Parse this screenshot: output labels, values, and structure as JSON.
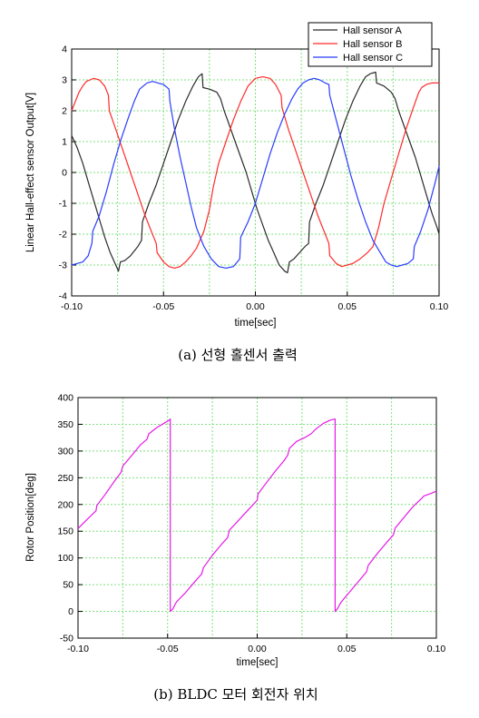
{
  "chart_data": [
    {
      "type": "line",
      "xlabel": "time[sec]",
      "ylabel": "Linear Hall-effect sensor Output[V]",
      "xlim": [
        -0.1,
        0.1
      ],
      "ylim": [
        -4,
        4
      ],
      "xticks": [
        "-0.10",
        "-0.05",
        "0.00",
        "0.05",
        "0.10"
      ],
      "yticks": [
        "-4",
        "-3",
        "-2",
        "-1",
        "0",
        "1",
        "2",
        "3",
        "4"
      ],
      "grid": true,
      "legend_position": "top-right",
      "caption": "(a) 선형 홀센서 출력",
      "series": [
        {
          "name": "Hall sensor A",
          "color": "#2b2b2b",
          "x": [
            -0.1,
            -0.097,
            -0.094,
            -0.091,
            -0.088,
            -0.085,
            -0.082,
            -0.079,
            -0.076,
            -0.0745,
            -0.0735,
            -0.071,
            -0.068,
            -0.064,
            -0.062,
            -0.0615,
            -0.058,
            -0.054,
            -0.05,
            -0.046,
            -0.042,
            -0.038,
            -0.034,
            -0.031,
            -0.029,
            -0.0285,
            -0.025,
            -0.021,
            -0.019,
            -0.017,
            -0.014,
            -0.011,
            -0.008,
            -0.005,
            -0.002,
            0.001,
            0.004,
            0.007,
            0.01,
            0.013,
            0.016,
            0.0175,
            0.0185,
            0.021,
            0.024,
            0.027,
            0.029,
            0.0295,
            0.033,
            0.037,
            0.041,
            0.045,
            0.049,
            0.053,
            0.057,
            0.06,
            0.0625,
            0.0655,
            0.066,
            0.07,
            0.074,
            0.076,
            0.078,
            0.081,
            0.084,
            0.087,
            0.09,
            0.093,
            0.096,
            0.099,
            0.1
          ],
          "y": [
            1.2,
            0.8,
            0.3,
            -0.3,
            -0.9,
            -1.5,
            -2.1,
            -2.6,
            -3.0,
            -3.2,
            -2.9,
            -2.85,
            -2.7,
            -2.4,
            -2.2,
            -1.6,
            -1.0,
            -0.4,
            0.3,
            1.0,
            1.7,
            2.3,
            2.8,
            3.1,
            3.2,
            2.75,
            2.7,
            2.6,
            2.4,
            2.0,
            1.5,
            1.0,
            0.5,
            0.0,
            -0.6,
            -1.2,
            -1.7,
            -2.2,
            -2.6,
            -3.0,
            -3.2,
            -3.25,
            -2.9,
            -2.8,
            -2.6,
            -2.4,
            -2.3,
            -1.6,
            -1.0,
            -0.4,
            0.3,
            1.0,
            1.7,
            2.3,
            2.8,
            3.1,
            3.2,
            3.25,
            2.9,
            2.8,
            2.6,
            2.4,
            2.0,
            1.5,
            1.0,
            0.5,
            -0.1,
            -0.7,
            -1.3,
            -1.8,
            -2.0
          ]
        },
        {
          "name": "Hall sensor B",
          "color": "#ff2a2a",
          "x": [
            -0.1,
            -0.098,
            -0.096,
            -0.094,
            -0.092,
            -0.09,
            -0.088,
            -0.085,
            -0.082,
            -0.08,
            -0.0795,
            -0.076,
            -0.072,
            -0.068,
            -0.064,
            -0.06,
            -0.056,
            -0.054,
            -0.0535,
            -0.05,
            -0.047,
            -0.044,
            -0.041,
            -0.038,
            -0.035,
            -0.032,
            -0.028,
            -0.025,
            -0.023,
            -0.02,
            -0.016,
            -0.012,
            -0.008,
            -0.004,
            0.0,
            0.004,
            0.008,
            0.011,
            0.014,
            0.0145,
            0.018,
            0.022,
            0.026,
            0.03,
            0.034,
            0.038,
            0.04,
            0.0405,
            0.044,
            0.047,
            0.05,
            0.053,
            0.057,
            0.061,
            0.064,
            0.067,
            0.07,
            0.074,
            0.078,
            0.082,
            0.086,
            0.089,
            0.0905,
            0.093,
            0.096,
            0.1
          ],
          "y": [
            2.0,
            2.3,
            2.6,
            2.8,
            2.95,
            3.0,
            3.05,
            3.0,
            2.8,
            2.5,
            2.0,
            1.4,
            0.7,
            0.0,
            -0.7,
            -1.4,
            -2.0,
            -2.3,
            -2.6,
            -2.9,
            -3.05,
            -3.1,
            -3.05,
            -2.9,
            -2.7,
            -2.45,
            -1.9,
            -1.2,
            -0.5,
            0.3,
            1.0,
            1.7,
            2.3,
            2.8,
            3.05,
            3.1,
            3.05,
            2.85,
            2.5,
            2.1,
            1.4,
            0.7,
            0.0,
            -0.7,
            -1.4,
            -2.0,
            -2.3,
            -2.7,
            -2.95,
            -3.05,
            -3.0,
            -2.95,
            -2.8,
            -2.6,
            -2.4,
            -1.8,
            -1.0,
            -0.2,
            0.6,
            1.4,
            2.1,
            2.6,
            2.75,
            2.85,
            2.9,
            2.9
          ]
        },
        {
          "name": "Hall sensor C",
          "color": "#2a3cff",
          "x": [
            -0.1,
            -0.097,
            -0.094,
            -0.091,
            -0.089,
            -0.0885,
            -0.085,
            -0.081,
            -0.077,
            -0.073,
            -0.069,
            -0.066,
            -0.063,
            -0.059,
            -0.056,
            -0.053,
            -0.05,
            -0.047,
            -0.0465,
            -0.044,
            -0.041,
            -0.038,
            -0.035,
            -0.032,
            -0.028,
            -0.024,
            -0.02,
            -0.016,
            -0.012,
            -0.0085,
            -0.008,
            -0.004,
            0.0,
            0.004,
            0.008,
            0.012,
            0.016,
            0.02,
            0.023,
            0.026,
            0.029,
            0.032,
            0.035,
            0.038,
            0.04,
            0.0405,
            0.044,
            0.048,
            0.052,
            0.056,
            0.06,
            0.064,
            0.068,
            0.071,
            0.074,
            0.077,
            0.08,
            0.083,
            0.086,
            0.0865,
            0.09,
            0.094,
            0.098,
            0.1
          ],
          "y": [
            -3.0,
            -2.95,
            -2.9,
            -2.7,
            -2.3,
            -1.9,
            -1.4,
            -0.6,
            0.3,
            1.1,
            1.8,
            2.3,
            2.7,
            2.9,
            2.95,
            2.9,
            2.85,
            2.7,
            2.3,
            1.4,
            0.5,
            -0.3,
            -1.1,
            -1.8,
            -2.4,
            -2.8,
            -3.05,
            -3.1,
            -3.05,
            -2.8,
            -2.1,
            -1.6,
            -1.0,
            -0.2,
            0.6,
            1.3,
            1.9,
            2.4,
            2.7,
            2.9,
            3.0,
            3.05,
            3.0,
            2.9,
            2.85,
            2.5,
            1.7,
            0.8,
            -0.1,
            -0.9,
            -1.6,
            -2.2,
            -2.6,
            -2.9,
            -3.0,
            -3.05,
            -3.0,
            -2.95,
            -2.8,
            -2.4,
            -1.9,
            -1.2,
            -0.3,
            0.2
          ]
        }
      ]
    },
    {
      "type": "line",
      "xlabel": "time[sec]",
      "ylabel": "Rotor Position[deg]",
      "xlim": [
        -0.1,
        0.1
      ],
      "ylim": [
        -50,
        400
      ],
      "xticks": [
        "-0.10",
        "-0.05",
        "0.00",
        "0.05",
        "0.10"
      ],
      "yticks": [
        "-50",
        "0",
        "50",
        "100",
        "150",
        "200",
        "250",
        "300",
        "350",
        "400"
      ],
      "grid": true,
      "caption": "(b) BLDC 모터 회전자 위치",
      "series": [
        {
          "color": "#e619e6",
          "x": [
            -0.1,
            -0.095,
            -0.09,
            -0.0895,
            -0.085,
            -0.08,
            -0.076,
            -0.075,
            -0.07,
            -0.065,
            -0.0615,
            -0.0605,
            -0.056,
            -0.052,
            -0.049,
            -0.0485,
            -0.0485,
            -0.047,
            -0.046,
            -0.045,
            -0.04,
            -0.035,
            -0.031,
            -0.03,
            -0.025,
            -0.02,
            -0.0165,
            -0.0155,
            -0.01,
            -0.005,
            0.0,
            0.0005,
            0.005,
            0.01,
            0.015,
            0.017,
            0.018,
            0.022,
            0.027,
            0.03,
            0.033,
            0.037,
            0.041,
            0.0435,
            0.0435,
            0.045,
            0.046,
            0.047,
            0.052,
            0.057,
            0.061,
            0.062,
            0.067,
            0.072,
            0.076,
            0.077,
            0.082,
            0.087,
            0.092,
            0.093,
            0.098,
            0.1
          ],
          "y": [
            155,
            172,
            188,
            198,
            218,
            242,
            260,
            272,
            292,
            312,
            322,
            332,
            344,
            352,
            358,
            360,
            0,
            5,
            12,
            18,
            35,
            55,
            70,
            82,
            105,
            125,
            138,
            152,
            172,
            190,
            208,
            220,
            240,
            262,
            282,
            292,
            305,
            318,
            326,
            332,
            342,
            352,
            358,
            360,
            0,
            6,
            13,
            18,
            38,
            58,
            74,
            86,
            108,
            128,
            143,
            156,
            176,
            196,
            212,
            216,
            222,
            225
          ]
        }
      ]
    }
  ]
}
